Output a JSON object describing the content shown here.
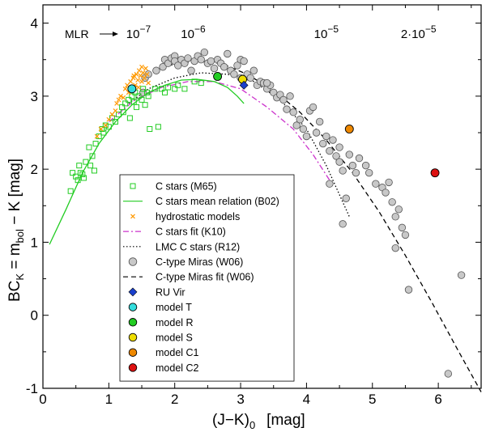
{
  "chart_data": {
    "type": "scatter",
    "xlabel": "(J−K)",
    "xlabel_sub": "0",
    "xlabel_unit": "[mag]",
    "ylabel_parts": [
      "BC",
      "K",
      " = m",
      "bol",
      " − K  [mag]"
    ],
    "xlim": [
      0,
      6.65
    ],
    "ylim": [
      -1,
      4.25
    ],
    "x_ticks": [
      0,
      1,
      2,
      3,
      4,
      5,
      6
    ],
    "y_ticks": [
      -1,
      0,
      1,
      2,
      3,
      4
    ],
    "mlr_label": "MLR",
    "mlr_ticks": [
      {
        "label": "10",
        "exp": "−7",
        "x": 1.45
      },
      {
        "label": "10",
        "exp": "−6",
        "x": 2.28
      },
      {
        "label": "10",
        "exp": "−5",
        "x": 4.3
      },
      {
        "label": "2·10",
        "exp": "−5",
        "x": 5.7
      }
    ],
    "legend": [
      {
        "key": "c_stars",
        "label": "C stars (M65)",
        "marker": "square",
        "color": "#22cc22"
      },
      {
        "key": "c_mean",
        "label": "C stars mean relation (B02)",
        "marker": "line-solid",
        "color": "#22cc22"
      },
      {
        "key": "hydro",
        "label": "hydrostatic models",
        "marker": "cross",
        "color": "#ff9900"
      },
      {
        "key": "k10",
        "label": "C stars fit (K10)",
        "marker": "line-dashdot",
        "color": "#cc33cc"
      },
      {
        "key": "r12",
        "label": "LMC C stars (R12)",
        "marker": "line-dotted",
        "color": "#000000"
      },
      {
        "key": "miras",
        "label": "C-type Miras (W06)",
        "marker": "circle",
        "color": "#c8c8c8"
      },
      {
        "key": "w06fit",
        "label": "C-type Miras fit (W06)",
        "marker": "line-dashed",
        "color": "#000000"
      },
      {
        "key": "ruvir",
        "label": "RU Vir",
        "marker": "diamond",
        "color": "#1a3fcc"
      },
      {
        "key": "modelT",
        "label": "model T",
        "marker": "circle",
        "color": "#33dddd"
      },
      {
        "key": "modelR",
        "label": "model R",
        "marker": "circle",
        "color": "#22cc22"
      },
      {
        "key": "modelS",
        "label": "model S",
        "marker": "circle",
        "color": "#eedd00"
      },
      {
        "key": "modelC1",
        "label": "model C1",
        "marker": "circle",
        "color": "#ee8800"
      },
      {
        "key": "modelC2",
        "label": "model C2",
        "marker": "circle",
        "color": "#dd1111"
      }
    ],
    "series": {
      "c_stars": [
        [
          0.42,
          1.7
        ],
        [
          0.45,
          1.95
        ],
        [
          0.5,
          1.9
        ],
        [
          0.53,
          1.85
        ],
        [
          0.55,
          2.05
        ],
        [
          0.57,
          1.95
        ],
        [
          0.6,
          1.93
        ],
        [
          0.62,
          1.88
        ],
        [
          0.65,
          2.1
        ],
        [
          0.7,
          2.3
        ],
        [
          0.72,
          2.05
        ],
        [
          0.75,
          2.18
        ],
        [
          0.78,
          1.98
        ],
        [
          0.8,
          2.35
        ],
        [
          0.85,
          2.45
        ],
        [
          0.9,
          2.55
        ],
        [
          0.92,
          2.5
        ],
        [
          0.95,
          2.6
        ],
        [
          1.0,
          2.58
        ],
        [
          1.05,
          2.7
        ],
        [
          1.1,
          2.65
        ],
        [
          1.15,
          2.75
        ],
        [
          1.2,
          2.85
        ],
        [
          1.22,
          2.78
        ],
        [
          1.25,
          2.9
        ],
        [
          1.3,
          2.95
        ],
        [
          1.32,
          2.7
        ],
        [
          1.35,
          3.0
        ],
        [
          1.38,
          2.92
        ],
        [
          1.4,
          3.05
        ],
        [
          1.42,
          2.85
        ],
        [
          1.45,
          3.0
        ],
        [
          1.5,
          2.95
        ],
        [
          1.52,
          3.1
        ],
        [
          1.55,
          2.88
        ],
        [
          1.58,
          3.05
        ],
        [
          1.6,
          3.0
        ],
        [
          1.62,
          2.55
        ],
        [
          1.7,
          3.1
        ],
        [
          1.75,
          2.58
        ],
        [
          1.8,
          3.1
        ],
        [
          1.85,
          3.05
        ],
        [
          1.9,
          3.12
        ],
        [
          2.0,
          3.1
        ],
        [
          2.05,
          3.15
        ],
        [
          2.15,
          3.1
        ],
        [
          2.3,
          3.2
        ],
        [
          2.4,
          3.18
        ]
      ],
      "hydro": [
        [
          0.82,
          2.45
        ],
        [
          0.88,
          2.55
        ],
        [
          0.95,
          2.6
        ],
        [
          1.0,
          2.68
        ],
        [
          1.05,
          2.75
        ],
        [
          1.1,
          2.8
        ],
        [
          1.12,
          2.9
        ],
        [
          1.15,
          2.95
        ],
        [
          1.18,
          3.0
        ],
        [
          1.22,
          2.98
        ],
        [
          1.25,
          3.1
        ],
        [
          1.28,
          3.15
        ],
        [
          1.3,
          3.05
        ],
        [
          1.33,
          3.2
        ],
        [
          1.35,
          3.1
        ],
        [
          1.37,
          3.25
        ],
        [
          1.4,
          3.15
        ],
        [
          1.42,
          3.3
        ],
        [
          1.44,
          3.22
        ],
        [
          1.46,
          3.35
        ],
        [
          1.48,
          3.28
        ],
        [
          1.5,
          3.2
        ],
        [
          1.52,
          3.32
        ],
        [
          1.54,
          3.25
        ],
        [
          1.56,
          3.38
        ],
        [
          1.58,
          3.3
        ],
        [
          1.6,
          3.18
        ],
        [
          1.45,
          3.12
        ],
        [
          1.38,
          3.28
        ],
        [
          1.5,
          3.4
        ]
      ],
      "miras": [
        [
          1.52,
          3.05
        ],
        [
          1.55,
          3.25
        ],
        [
          1.6,
          3.3
        ],
        [
          1.72,
          3.35
        ],
        [
          1.82,
          3.4
        ],
        [
          1.85,
          3.5
        ],
        [
          1.9,
          3.45
        ],
        [
          1.95,
          3.52
        ],
        [
          2.0,
          3.55
        ],
        [
          2.0,
          3.48
        ],
        [
          2.05,
          3.42
        ],
        [
          2.1,
          3.5
        ],
        [
          2.15,
          3.45
        ],
        [
          2.2,
          3.52
        ],
        [
          2.25,
          3.35
        ],
        [
          2.3,
          3.48
        ],
        [
          2.35,
          3.55
        ],
        [
          2.4,
          3.5
        ],
        [
          2.45,
          3.6
        ],
        [
          2.5,
          3.45
        ],
        [
          2.55,
          3.48
        ],
        [
          2.6,
          3.38
        ],
        [
          2.65,
          3.5
        ],
        [
          2.7,
          3.45
        ],
        [
          2.75,
          3.4
        ],
        [
          2.8,
          3.58
        ],
        [
          2.85,
          3.35
        ],
        [
          2.9,
          3.3
        ],
        [
          2.95,
          3.42
        ],
        [
          3.0,
          3.5
        ],
        [
          3.05,
          3.48
        ],
        [
          3.1,
          3.3
        ],
        [
          3.15,
          3.25
        ],
        [
          3.2,
          3.35
        ],
        [
          3.25,
          3.15
        ],
        [
          3.3,
          3.2
        ],
        [
          3.35,
          3.18
        ],
        [
          3.4,
          3.1
        ],
        [
          3.45,
          3.15
        ],
        [
          3.5,
          3.05
        ],
        [
          3.55,
          2.98
        ],
        [
          3.6,
          3.02
        ],
        [
          3.65,
          2.95
        ],
        [
          3.7,
          2.82
        ],
        [
          3.75,
          3.0
        ],
        [
          3.8,
          2.78
        ],
        [
          3.85,
          2.6
        ],
        [
          3.9,
          2.68
        ],
        [
          3.95,
          2.55
        ],
        [
          4.0,
          2.45
        ],
        [
          4.05,
          2.8
        ],
        [
          4.1,
          2.85
        ],
        [
          4.15,
          2.5
        ],
        [
          4.2,
          2.65
        ],
        [
          4.25,
          2.35
        ],
        [
          4.3,
          2.45
        ],
        [
          4.35,
          2.25
        ],
        [
          4.4,
          2.4
        ],
        [
          4.45,
          2.18
        ],
        [
          4.5,
          2.3
        ],
        [
          4.5,
          2.1
        ],
        [
          4.55,
          1.98
        ],
        [
          4.6,
          1.6
        ],
        [
          4.55,
          1.25
        ],
        [
          4.65,
          2.2
        ],
        [
          4.7,
          2.05
        ],
        [
          4.75,
          1.95
        ],
        [
          4.8,
          2.15
        ],
        [
          4.9,
          2.05
        ],
        [
          4.95,
          1.95
        ],
        [
          5.05,
          1.8
        ],
        [
          5.15,
          1.75
        ],
        [
          5.2,
          1.68
        ],
        [
          5.25,
          1.82
        ],
        [
          5.3,
          1.55
        ],
        [
          5.35,
          1.35
        ],
        [
          5.4,
          1.45
        ],
        [
          5.45,
          1.2
        ],
        [
          5.5,
          1.1
        ],
        [
          5.35,
          0.92
        ],
        [
          5.55,
          0.35
        ],
        [
          6.35,
          0.55
        ],
        [
          6.15,
          -0.8
        ],
        [
          3.0,
          3.25
        ],
        [
          3.4,
          3.18
        ],
        [
          4.35,
          1.8
        ]
      ],
      "c_mean": [
        [
          0.1,
          0.97
        ],
        [
          0.35,
          1.45
        ],
        [
          0.6,
          1.95
        ],
        [
          0.85,
          2.35
        ],
        [
          1.1,
          2.65
        ],
        [
          1.35,
          2.88
        ],
        [
          1.6,
          3.05
        ],
        [
          1.85,
          3.15
        ],
        [
          2.1,
          3.22
        ],
        [
          2.35,
          3.23
        ],
        [
          2.6,
          3.2
        ],
        [
          2.8,
          3.12
        ],
        [
          2.95,
          3.0
        ],
        [
          3.05,
          2.9
        ]
      ],
      "k10": [
        [
          1.0,
          2.65
        ],
        [
          1.4,
          2.95
        ],
        [
          1.8,
          3.12
        ],
        [
          2.2,
          3.2
        ],
        [
          2.6,
          3.2
        ],
        [
          3.0,
          3.1
        ],
        [
          3.4,
          2.85
        ],
        [
          3.8,
          2.55
        ],
        [
          4.1,
          2.2
        ],
        [
          4.35,
          1.85
        ]
      ],
      "r12": [
        [
          1.3,
          2.9
        ],
        [
          1.6,
          3.1
        ],
        [
          2.0,
          3.25
        ],
        [
          2.4,
          3.32
        ],
        [
          2.8,
          3.3
        ],
        [
          3.2,
          3.2
        ],
        [
          3.6,
          2.95
        ],
        [
          4.0,
          2.55
        ],
        [
          4.3,
          2.05
        ],
        [
          4.5,
          1.65
        ],
        [
          4.65,
          1.35
        ]
      ],
      "w06fit": [
        [
          1.55,
          3.3
        ],
        [
          1.9,
          3.42
        ],
        [
          2.3,
          3.48
        ],
        [
          2.7,
          3.45
        ],
        [
          3.1,
          3.3
        ],
        [
          3.5,
          3.08
        ],
        [
          3.9,
          2.78
        ],
        [
          4.3,
          2.4
        ],
        [
          4.7,
          1.95
        ],
        [
          5.1,
          1.42
        ],
        [
          5.5,
          0.82
        ],
        [
          5.9,
          0.18
        ],
        [
          6.3,
          -0.48
        ],
        [
          6.65,
          -1.05
        ]
      ],
      "ruvir": [
        [
          3.05,
          3.15
        ]
      ],
      "modelT": [
        [
          1.35,
          3.1
        ]
      ],
      "modelR": [
        [
          2.65,
          3.27
        ]
      ],
      "modelS": [
        [
          3.03,
          3.23
        ]
      ],
      "modelC1": [
        [
          4.65,
          2.55
        ]
      ],
      "modelC2": [
        [
          5.95,
          1.95
        ]
      ]
    }
  }
}
